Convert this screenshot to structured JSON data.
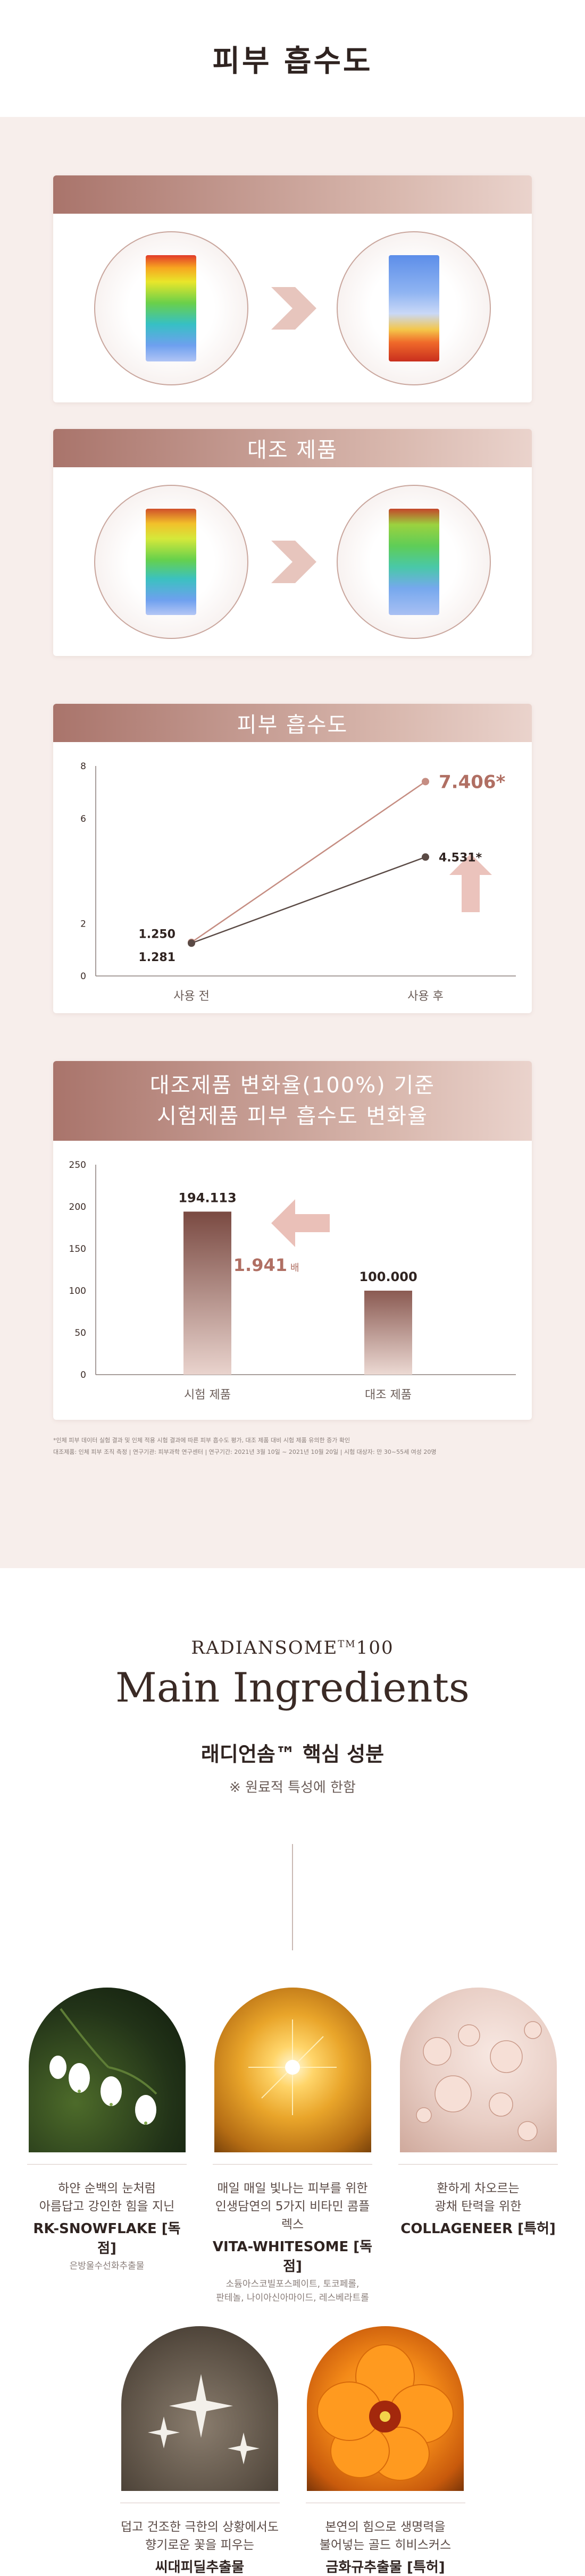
{
  "header": {
    "title": "피부 흡수도"
  },
  "scan_cards": [
    {
      "title": ""
    },
    {
      "title": "대조 제품"
    }
  ],
  "line_chart_card": {
    "title": "피부 흡수도"
  },
  "bar_chart_card": {
    "title_line1": "대조제품 변화율(100%) 기준",
    "title_line2": "시험제품 피부 흡수도 변화율"
  },
  "chart_data": [
    {
      "type": "line",
      "title": "피부 흡수도",
      "categories": [
        "사용 전",
        "사용 후"
      ],
      "yticks": [
        "0",
        "2",
        "6",
        "8"
      ],
      "ylim": [
        0,
        8
      ],
      "series": [
        {
          "values": [
            1.281,
            7.406
          ],
          "labels": [
            "1.281",
            "7.406*"
          ],
          "color": "#c58d82"
        },
        {
          "values": [
            1.25,
            4.531
          ],
          "labels": [
            "1.250",
            "4.531*"
          ],
          "color": "#5a4a45"
        }
      ]
    },
    {
      "type": "bar",
      "title": "대조제품 변화율(100%) 기준 시험제품 피부 흡수도 변화율",
      "categories": [
        "시험 제품",
        "대조 제품"
      ],
      "values": [
        194.113,
        100.0
      ],
      "labels": [
        "194.113",
        "100.000"
      ],
      "yticks": [
        "0",
        "50",
        "100",
        "150",
        "200",
        "250"
      ],
      "ylim": [
        0,
        250
      ],
      "ratio_label": "1.941",
      "ratio_unit": "배"
    }
  ],
  "footnote": {
    "line1": "*인체 피부 데이터 실험 결과 및 인체 적용 시험 결과에 따른 피부 흡수도 평가, 대조 제품 대비 시험 제품 유의한 증가 확인",
    "line2": "대조제품: 인체 피부 조직 측정 | 연구기관: 피부과학 연구센터 | 연구기간: 2021년 3월 10일 ~ 2021년 10월 20일 | 시험 대상자: 만 30~55세 여성 20명"
  },
  "ingredients_section": {
    "brand": "RADIANSOME",
    "brand_tm": "TM",
    "brand_num": "100",
    "heading": "Main Ingredients",
    "subheading": "래디언솜™ 핵심 성분",
    "note": "※ 원료적 특성에 한함"
  },
  "ingredients": [
    {
      "desc1": "하얀 순백의 눈처럼",
      "desc2": "아름답고 강인한 힘을 지닌",
      "name": "RK-SNOWFLAKE [독점]",
      "sub": "은방울수선화추출물",
      "sub2": ""
    },
    {
      "desc1": "매일 매일 빛나는 피부를 위한",
      "desc2": "인생담연의 5가지 비타민 콤플렉스",
      "name": "VITA-WHITESOME [독점]",
      "sub": "소듐아스코빌포스페이트, 토코페롤,",
      "sub2": "판테놀, 나이아신아마이드, 레스베라트롤"
    },
    {
      "desc1": "환하게 차오르는",
      "desc2": "광채 탄력을 위한",
      "name": "COLLAGENEER [특허]",
      "sub": "",
      "sub2": ""
    },
    {
      "desc1": "덥고 건조한 극한의 상황에서도",
      "desc2": "향기로운 꽃을 피우는",
      "name": "씨대피딜추출물",
      "sub": "",
      "sub2": ""
    },
    {
      "desc1": "본연의 힘으로 생명력을",
      "desc2": "불어넣는 골드 히비스커스",
      "name": "금화규추출물 [특허]",
      "sub": "",
      "sub2": ""
    }
  ]
}
